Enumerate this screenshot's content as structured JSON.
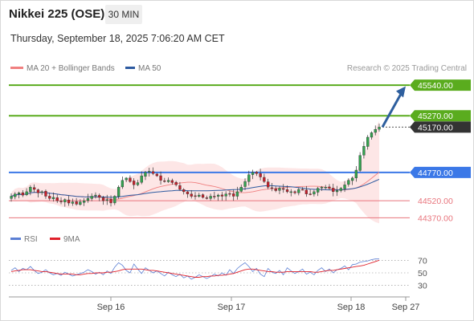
{
  "header": {
    "instrument": "Nikkei 225 (OSE)",
    "timeframe": "30 MIN",
    "datetime": "Thursday, September 18, 2025 7:06:20 AM CET"
  },
  "legend": {
    "ma20": "MA 20 + Bollinger Bands",
    "ma50": "MA 50",
    "credit": "Research © 2025 Trading Central"
  },
  "rsi_legend": {
    "rsi": "RSI",
    "ma9": "9MA"
  },
  "colors": {
    "resistance": "#5aac1e",
    "pivot": "#3b78e7",
    "support": "#e8747c",
    "last_price": "#333333",
    "arrow": "#2e5f9e",
    "candle_up": "#33a34f",
    "candle_down": "#c8202b",
    "bollinger_fill": "#fde6e6",
    "ma20": "#f08080",
    "ma50": "#2d5aa0",
    "rsi": "#5b7fd4",
    "rsi_ma": "#e0202a"
  },
  "chart_data": {
    "type": "candlestick",
    "y_range": [
      44330,
      45590
    ],
    "x_ticks": [
      "Sep 16",
      "Sep 17",
      "Sep 18",
      "Sep 27"
    ],
    "levels": [
      {
        "label": "45540.00",
        "value": 45540,
        "kind": "resistance"
      },
      {
        "label": "45270.00",
        "value": 45270,
        "kind": "resistance"
      },
      {
        "label": "45170.00",
        "value": 45170,
        "kind": "last"
      },
      {
        "label": "44770.00",
        "value": 44770,
        "kind": "pivot"
      },
      {
        "label": "44520.00",
        "value": 44520,
        "kind": "support"
      },
      {
        "label": "44370.00",
        "value": 44370,
        "kind": "support"
      }
    ],
    "projection": {
      "from": 45170,
      "to": 45530
    },
    "closes": [
      44560,
      44580,
      44590,
      44570,
      44600,
      44640,
      44620,
      44590,
      44600,
      44560,
      44540,
      44550,
      44520,
      44510,
      44530,
      44500,
      44510,
      44490,
      44510,
      44520,
      44540,
      44560,
      44570,
      44550,
      44520,
      44530,
      44500,
      44560,
      44640,
      44700,
      44720,
      44690,
      44660,
      44680,
      44740,
      44770,
      44780,
      44760,
      44740,
      44700,
      44690,
      44700,
      44680,
      44660,
      44620,
      44600,
      44580,
      44560,
      44560,
      44570,
      44550,
      44540,
      44560,
      44560,
      44570,
      44560,
      44580,
      44580,
      44560,
      44600,
      44640,
      44690,
      44750,
      44770,
      44760,
      44730,
      44690,
      44640,
      44630,
      44610,
      44630,
      44620,
      44600,
      44600,
      44590,
      44620,
      44620,
      44580,
      44580,
      44600,
      44630,
      44640,
      44640,
      44630,
      44600,
      44610,
      44630,
      44660,
      44700,
      44720,
      44790,
      44920,
      45000,
      45080,
      45120,
      45150,
      45170
    ],
    "rsi": {
      "ticks": [
        70,
        50,
        30
      ],
      "values": [
        54,
        58,
        52,
        57,
        55,
        60,
        54,
        49,
        51,
        55,
        50,
        47,
        49,
        46,
        51,
        48,
        45,
        47,
        49,
        51,
        55,
        52,
        48,
        51,
        47,
        53,
        49,
        59,
        66,
        62,
        54,
        50,
        64,
        56,
        49,
        58,
        54,
        50,
        53,
        49,
        45,
        51,
        47,
        44,
        48,
        42,
        45,
        40,
        43,
        47,
        44,
        41,
        44,
        48,
        45,
        50,
        46,
        55,
        49,
        57,
        62,
        66,
        60,
        52,
        57,
        48,
        44,
        57,
        51,
        49,
        54,
        47,
        58,
        53,
        49,
        52,
        56,
        48,
        51,
        47,
        54,
        58,
        52,
        56,
        50,
        55,
        57,
        61,
        55,
        63,
        64,
        67,
        68,
        69,
        71,
        72,
        72
      ],
      "ma": [
        52,
        53,
        54,
        55,
        55,
        55,
        54,
        53,
        52,
        52,
        51,
        50,
        49,
        48,
        48,
        48,
        48,
        47,
        47,
        48,
        49,
        49,
        50,
        50,
        50,
        51,
        51,
        52,
        53,
        55,
        56,
        56,
        56,
        56,
        56,
        55,
        54,
        54,
        53,
        52,
        51,
        50,
        49,
        48,
        47,
        46,
        45,
        44,
        43,
        43,
        44,
        44,
        45,
        45,
        46,
        46,
        47,
        48,
        49,
        51,
        53,
        55,
        56,
        56,
        55,
        54,
        53,
        52,
        52,
        51,
        51,
        51,
        52,
        52,
        52,
        52,
        52,
        52,
        52,
        51,
        51,
        52,
        53,
        54,
        54,
        55,
        56,
        57,
        58,
        59,
        60,
        61,
        62,
        64,
        66,
        68,
        70
      ]
    }
  }
}
